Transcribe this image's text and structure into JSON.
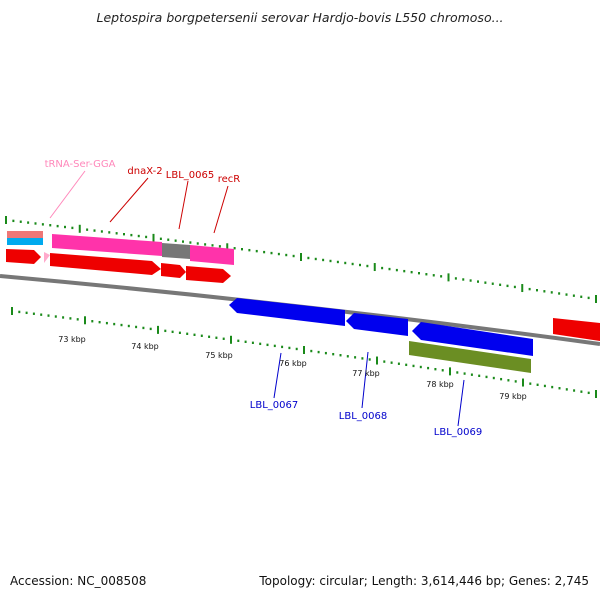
{
  "title": "Leptospira borgpetersenii serovar Hardjo-bovis L550 chromoso...",
  "footer": {
    "accession": "Accession: NC_008508",
    "summary": "Topology: circular; Length: 3,614,446 bp; Genes: 2,745"
  },
  "colors": {
    "backbone": "#808080",
    "tick": "#1a8a1a",
    "cds_forward": "#ee0000",
    "cds_reverse": "#0000ee",
    "gene_pink": "#ff33aa",
    "trna_label": "#ff88bb",
    "gene_label_top": "#cc0000",
    "gene_label_bottom": "#0000cc",
    "olive": "#6b8e23",
    "gray_block": "#777777",
    "cyan": "#00aaee",
    "salmon": "#ee7777"
  },
  "scale_labels": [
    "73 kbp",
    "74 kbp",
    "75 kbp",
    "76 kbp",
    "77 kbp",
    "78 kbp",
    "79 kbp"
  ],
  "gene_labels_top": [
    "tRNA-Ser-GGA",
    "dnaX-2",
    "LBL_0065",
    "recR"
  ],
  "gene_labels_bottom": [
    "LBL_0067",
    "LBL_0068",
    "LBL_0069"
  ]
}
